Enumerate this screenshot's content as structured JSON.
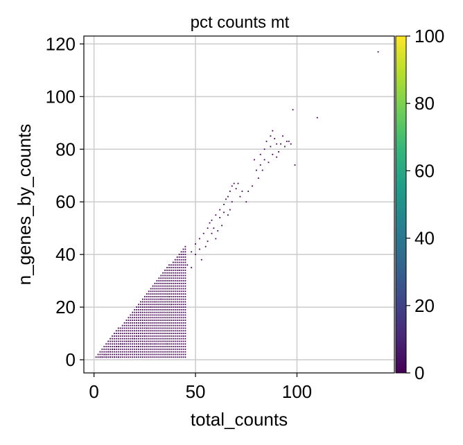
{
  "chart_data": {
    "type": "scatter",
    "title": "pct counts mt",
    "xlabel": "total_counts",
    "ylabel": "n_genes_by_counts",
    "xlim": [
      -5,
      148
    ],
    "ylim": [
      -5,
      123
    ],
    "xticks": [
      0,
      50,
      100
    ],
    "yticks": [
      0,
      20,
      40,
      60,
      80,
      100,
      120
    ],
    "grid": true,
    "colorbar": {
      "label": "",
      "range": [
        0,
        100
      ],
      "ticks": [
        0,
        20,
        40,
        60,
        80,
        100
      ],
      "colormap": "viridis",
      "colors": [
        "#440154",
        "#482878",
        "#3e4989",
        "#31688e",
        "#26828e",
        "#1f9e89",
        "#35b779",
        "#6ece58",
        "#b5de2b",
        "#fde725"
      ]
    },
    "point_color": "#440154",
    "dense_band": {
      "description": "main cluster: one point per integer gene count, n_genes between 1 and ~0.96*total_counts",
      "x_range": [
        1,
        45
      ]
    },
    "points": [
      [
        3,
        1
      ],
      [
        4,
        1
      ],
      [
        5,
        2
      ],
      [
        6,
        2
      ],
      [
        7,
        3
      ],
      [
        8,
        3
      ],
      [
        9,
        4
      ],
      [
        10,
        4
      ],
      [
        11,
        5
      ],
      [
        12,
        5
      ],
      [
        13,
        6
      ],
      [
        14,
        6
      ],
      [
        15,
        6
      ],
      [
        16,
        7
      ],
      [
        17,
        7
      ],
      [
        18,
        7
      ],
      [
        19,
        8
      ],
      [
        20,
        8
      ],
      [
        21,
        9
      ],
      [
        22,
        9
      ],
      [
        6,
        1
      ],
      [
        8,
        1
      ],
      [
        10,
        1
      ],
      [
        12,
        1
      ],
      [
        14,
        2
      ],
      [
        16,
        2
      ],
      [
        18,
        3
      ],
      [
        20,
        3
      ],
      [
        22,
        5
      ],
      [
        24,
        6
      ],
      [
        26,
        6
      ],
      [
        28,
        6
      ],
      [
        30,
        6
      ],
      [
        36,
        6
      ],
      [
        25,
        9
      ],
      [
        24,
        14
      ],
      [
        26,
        12
      ],
      [
        28,
        20
      ],
      [
        30,
        22
      ],
      [
        33,
        23
      ],
      [
        37,
        24
      ],
      [
        38,
        21
      ],
      [
        40,
        32
      ],
      [
        42,
        34
      ],
      [
        44,
        9
      ],
      [
        45,
        38
      ],
      [
        46,
        36
      ],
      [
        48,
        35
      ],
      [
        48,
        41
      ],
      [
        50,
        40
      ],
      [
        50,
        44
      ],
      [
        52,
        42
      ],
      [
        52,
        46
      ],
      [
        53,
        38
      ],
      [
        54,
        48
      ],
      [
        55,
        43
      ],
      [
        56,
        45
      ],
      [
        56,
        50
      ],
      [
        57,
        52
      ],
      [
        58,
        48
      ],
      [
        58,
        53
      ],
      [
        59,
        50
      ],
      [
        60,
        55
      ],
      [
        60,
        46
      ],
      [
        61,
        49
      ],
      [
        62,
        54
      ],
      [
        62,
        57
      ],
      [
        63,
        51
      ],
      [
        64,
        56
      ],
      [
        64,
        59
      ],
      [
        65,
        61
      ],
      [
        66,
        55
      ],
      [
        66,
        62
      ],
      [
        67,
        57
      ],
      [
        67,
        64
      ],
      [
        68,
        66
      ],
      [
        68,
        60
      ],
      [
        69,
        67
      ],
      [
        70,
        65
      ],
      [
        71,
        67
      ],
      [
        72,
        62
      ],
      [
        73,
        64
      ],
      [
        75,
        60
      ],
      [
        76,
        64
      ],
      [
        78,
        66
      ],
      [
        79,
        76
      ],
      [
        80,
        72
      ],
      [
        81,
        69
      ],
      [
        82,
        78
      ],
      [
        82,
        74
      ],
      [
        83,
        72
      ],
      [
        84,
        80
      ],
      [
        84,
        76
      ],
      [
        85,
        83
      ],
      [
        86,
        75
      ],
      [
        87,
        81
      ],
      [
        87,
        85
      ],
      [
        88,
        87
      ],
      [
        88,
        78
      ],
      [
        89,
        84
      ],
      [
        90,
        82
      ],
      [
        90,
        77
      ],
      [
        91,
        79
      ],
      [
        92,
        82
      ],
      [
        93,
        85
      ],
      [
        94,
        81
      ],
      [
        95,
        83
      ],
      [
        96,
        83
      ],
      [
        97,
        82
      ],
      [
        98,
        95
      ],
      [
        99,
        74
      ],
      [
        110,
        92
      ],
      [
        140,
        117
      ]
    ]
  }
}
